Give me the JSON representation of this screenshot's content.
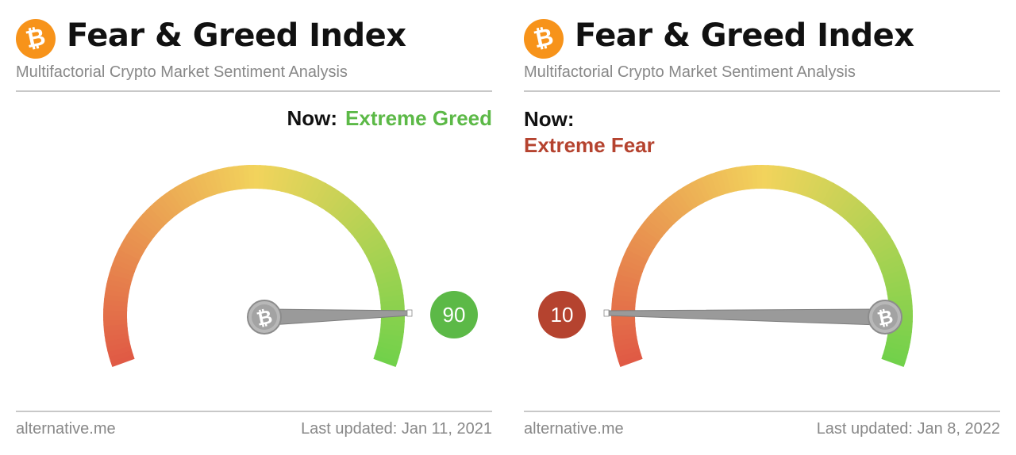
{
  "panels": [
    {
      "logo_symbol": "₿",
      "title": "Fear & Greed Index",
      "subtitle": "Multifactorial Crypto Market Sentiment Analysis",
      "now_label": "Now:",
      "status": "Extreme Greed",
      "status_color": "#5cb947",
      "value": 90,
      "value_text": "90",
      "badge_color": "#5cb947",
      "source": "alternative.me",
      "last_updated": "Last updated: Jan 11, 2021"
    },
    {
      "logo_symbol": "₿",
      "title": "Fear & Greed Index",
      "subtitle": "Multifactorial Crypto Market Sentiment Analysis",
      "now_label": "Now:",
      "status": "Extreme Fear",
      "status_color": "#b5432f",
      "value": 10,
      "value_text": "10",
      "badge_color": "#b5432f",
      "source": "alternative.me",
      "last_updated": "Last updated: Jan 8, 2022"
    }
  ],
  "chart_data": [
    {
      "type": "gauge",
      "title": "Fear & Greed Index",
      "value": 90,
      "range": [
        0,
        100
      ],
      "label": "Extreme Greed",
      "date": "Jan 11, 2021"
    },
    {
      "type": "gauge",
      "title": "Fear & Greed Index",
      "value": 10,
      "range": [
        0,
        100
      ],
      "label": "Extreme Fear",
      "date": "Jan 8, 2022"
    }
  ],
  "colors": {
    "bitcoin_orange": "#f7931a",
    "gauge_fear": "#e05a45",
    "gauge_neutral": "#f2d35c",
    "gauge_greed": "#6fd14a",
    "needle": "#9a9a9a"
  },
  "icons": [
    "bitcoin-logo-icon",
    "bitcoin-hub-icon"
  ]
}
